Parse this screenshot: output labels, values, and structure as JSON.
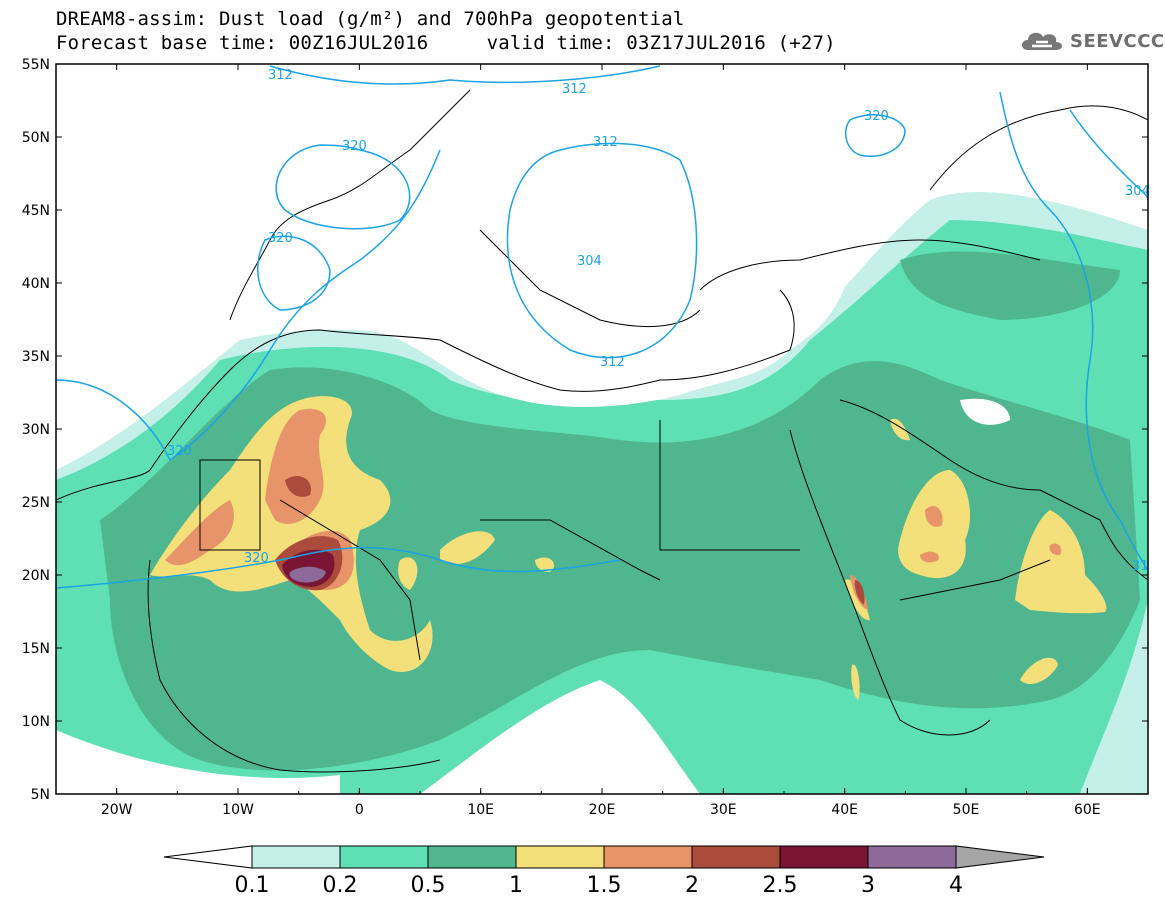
{
  "title": {
    "line1": "DREAM8-assim: Dust load (g/m²) and 700hPa geopotential",
    "line2": "Forecast base time: 00Z16JUL2016     valid time: 03Z17JUL2016 (+27)"
  },
  "logo": {
    "text": "SEEVCCC",
    "icon": "cloud-icon"
  },
  "map": {
    "lat_labels": [
      "55N",
      "50N",
      "45N",
      "40N",
      "35N",
      "30N",
      "25N",
      "20N",
      "15N",
      "10N",
      "5N"
    ],
    "lon_labels": [
      "20W",
      "10W",
      "0",
      "10E",
      "20E",
      "30E",
      "40E",
      "50E",
      "60E"
    ],
    "lon_range": [
      -25,
      65
    ],
    "lat_range": [
      5,
      55
    ],
    "contour_labels": [
      "312",
      "312",
      "312",
      "320",
      "320",
      "320",
      "304",
      "312",
      "320",
      "320",
      "304",
      "31"
    ]
  },
  "colorbar": {
    "boundaries": [
      "0.1",
      "0.2",
      "0.5",
      "1",
      "1.5",
      "2",
      "2.5",
      "3",
      "4"
    ],
    "colors": [
      "#c4f0e8",
      "#5ee0b4",
      "#4fb68f",
      "#f3e07a",
      "#e8946a",
      "#aa4b3c",
      "#7a1535",
      "#8c6a9a",
      "#a5a5a5"
    ]
  }
}
